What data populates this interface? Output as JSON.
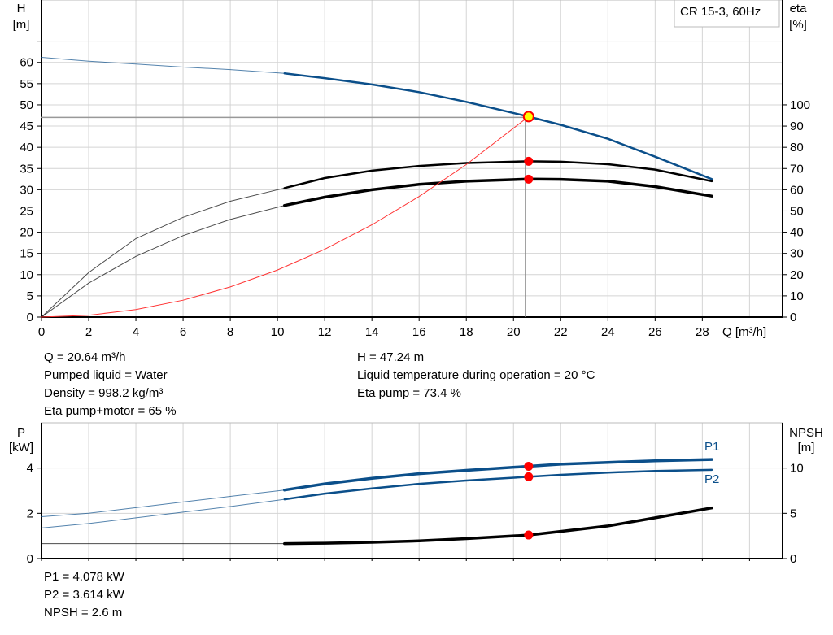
{
  "chart_data": [
    {
      "type": "line",
      "title": "CR 15-3, 60Hz",
      "xlabel": "Q [m³/h]",
      "ylabel_left": [
        "H",
        "[m]"
      ],
      "ylabel_right": [
        "eta",
        "[%]"
      ],
      "xlim": [
        0,
        31.4
      ],
      "ylim_left": [
        0,
        74.7
      ],
      "ylim_right": [
        0,
        149.4
      ],
      "xticks": [
        0,
        2,
        4,
        6,
        8,
        10,
        12,
        14,
        16,
        18,
        20,
        22,
        24,
        26,
        28
      ],
      "yticks_left": [
        0,
        5,
        10,
        15,
        20,
        25,
        30,
        35,
        40,
        45,
        50,
        55,
        60
      ],
      "yticks_right": [
        0,
        10,
        20,
        30,
        40,
        50,
        60,
        70,
        80,
        90,
        100
      ],
      "grid": true,
      "series": [
        {
          "axis": "left",
          "color": "#0b4f8a",
          "x": [
            0,
            2,
            4,
            6,
            8,
            10.3,
            12,
            14,
            16,
            18,
            20.64,
            22,
            24,
            26,
            28.4
          ],
          "y": [
            61.2,
            60.3,
            59.6,
            58.9,
            58.3,
            57.4,
            56.3,
            54.8,
            53,
            50.7,
            47.24,
            45.3,
            42,
            37.8,
            32.5
          ],
          "thick_from": 10.3
        },
        {
          "axis": "right",
          "color": "#000000",
          "x": [
            0,
            2,
            4,
            6,
            8,
            10.3,
            12,
            14,
            16,
            18,
            20.64,
            22,
            24,
            26,
            28.4
          ],
          "y": [
            0,
            21,
            37,
            47,
            54.6,
            60.8,
            65.5,
            69,
            71.2,
            72.6,
            73.4,
            73.2,
            72,
            69.5,
            64
          ],
          "thick_from": 10.3
        },
        {
          "axis": "right",
          "color": "#000000",
          "x": [
            0,
            2,
            4,
            6,
            8,
            10.3,
            12,
            14,
            16,
            18,
            20.64,
            22,
            24,
            26,
            28.4
          ],
          "y": [
            0,
            16,
            28.6,
            38.4,
            46,
            52.6,
            56.5,
            60,
            62.5,
            64,
            65,
            64.9,
            64,
            61.5,
            57
          ],
          "thick_from": 10.3,
          "bold": true
        },
        {
          "axis": "left",
          "color": "#ff3333",
          "x": [
            0,
            2,
            4,
            6,
            8,
            10,
            12,
            14,
            16,
            18,
            20.64
          ],
          "y": [
            0,
            0.44,
            1.77,
            3.99,
            7.1,
            11.09,
            15.97,
            21.74,
            28.4,
            35.93,
            47.24
          ],
          "thin": true
        }
      ],
      "operating_point": {
        "Q": 20.64,
        "H": 47.24,
        "eta_pump": 73.4,
        "eta_total": 65
      }
    },
    {
      "type": "line",
      "ylabel_left": [
        "P",
        "[kW]"
      ],
      "ylabel_right": [
        "NPSH",
        "[m]"
      ],
      "xlim": [
        0,
        31.4
      ],
      "ylim_left": [
        0,
        6
      ],
      "ylim_right": [
        0,
        15
      ],
      "yticks_left": [
        0,
        2,
        4
      ],
      "yticks_right": [
        0,
        5,
        10
      ],
      "grid": true,
      "series": [
        {
          "name": "P1",
          "axis": "left",
          "color": "#0b4f8a",
          "x": [
            0,
            2,
            4,
            6,
            8,
            10.3,
            12,
            14,
            16,
            18,
            20.64,
            22,
            24,
            26,
            28.4
          ],
          "y": [
            1.85,
            2.0,
            2.25,
            2.5,
            2.75,
            3.03,
            3.3,
            3.55,
            3.75,
            3.9,
            4.078,
            4.17,
            4.25,
            4.32,
            4.38
          ],
          "thick_from": 10.3,
          "bold": true
        },
        {
          "name": "P2",
          "axis": "left",
          "color": "#0b4f8a",
          "x": [
            0,
            2,
            4,
            6,
            8,
            10.3,
            12,
            14,
            16,
            18,
            20.64,
            22,
            24,
            26,
            28.4
          ],
          "y": [
            1.35,
            1.55,
            1.8,
            2.05,
            2.3,
            2.62,
            2.87,
            3.1,
            3.3,
            3.45,
            3.614,
            3.7,
            3.8,
            3.87,
            3.92
          ],
          "thick_from": 10.3
        },
        {
          "axis": "right",
          "color": "#000000",
          "x": [
            0,
            10.3,
            12,
            14,
            16,
            18,
            20.64,
            22,
            24,
            26,
            28.4
          ],
          "y": [
            1.65,
            1.65,
            1.7,
            1.8,
            1.95,
            2.2,
            2.6,
            3.0,
            3.6,
            4.5,
            5.6
          ],
          "thick_from": 10.3,
          "bold": true
        }
      ],
      "operating_point": {
        "Q": 20.64,
        "P1": 4.078,
        "P2": 3.614,
        "NPSH": 2.6
      }
    }
  ],
  "info_top_left": [
    "Q = 20.64 m³/h",
    "Pumped liquid = Water",
    "Density = 998.2 kg/m³",
    "Eta pump+motor = 65 %"
  ],
  "info_top_right": [
    "H = 47.24 m",
    "Liquid temperature during operation = 20 °C",
    "Eta pump = 73.4 %"
  ],
  "info_bottom": [
    "P1 = 4.078 kW",
    "P2 = 3.614 kW",
    "NPSH = 2.6 m"
  ]
}
